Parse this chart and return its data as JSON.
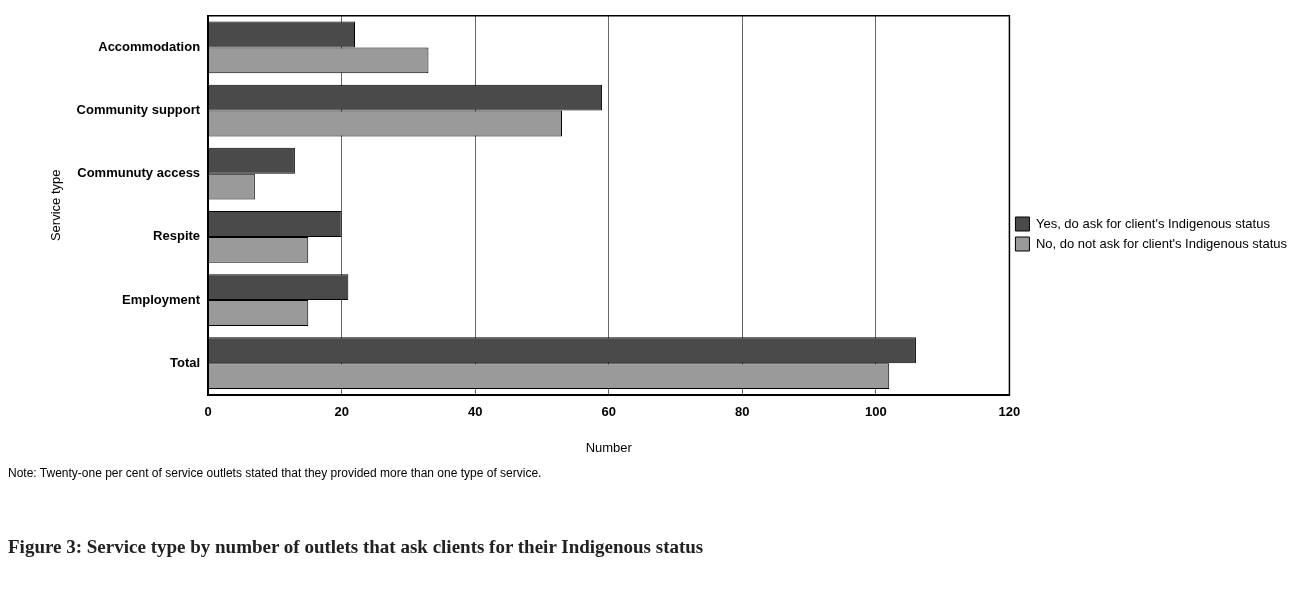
{
  "chart_data": {
    "type": "bar",
    "orientation": "horizontal",
    "title": "Figure 3: Service type by number of outlets that ask clients for their Indigenous status",
    "xlabel": "Number",
    "ylabel": "Service type",
    "categories": [
      "Accommodation",
      "Community support",
      "Communuty access",
      "Respite",
      "Employment",
      "Total"
    ],
    "series": [
      {
        "name": "Yes, do ask for client's Indigenous status",
        "color": "#4a4a4a",
        "values": [
          22,
          59,
          13,
          20,
          21,
          106
        ]
      },
      {
        "name": "No, do not ask for client's Indigenous status",
        "color": "#9a9a9a",
        "values": [
          33,
          53,
          7,
          15,
          15,
          102
        ]
      }
    ],
    "xlim": [
      0,
      120
    ],
    "xticks": [
      0,
      20,
      40,
      60,
      80,
      100,
      120
    ],
    "grid": "x",
    "legend": "right",
    "annotations": [
      "Note: Twenty-one per cent of service outlets stated that they provided more than one type of service."
    ]
  }
}
